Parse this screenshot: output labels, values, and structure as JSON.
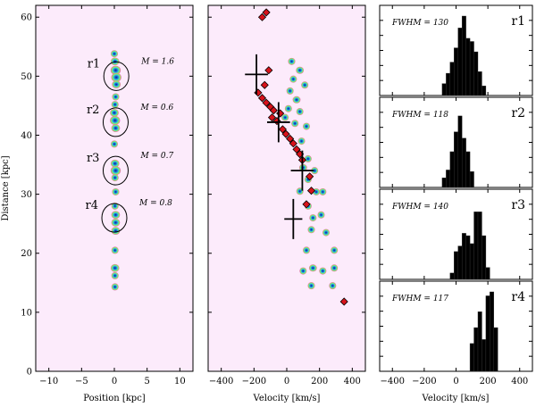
{
  "chart_data": [
    {
      "type": "scatter",
      "xlabel": "Position [kpc]",
      "ylabel": "Distance [kpc]",
      "xlim": [
        -12,
        12
      ],
      "ylim": [
        0,
        62
      ],
      "xticks": [
        -10,
        -5,
        0,
        5,
        10
      ],
      "yticks": [
        0,
        10,
        20,
        30,
        40,
        50,
        60
      ],
      "background": "#fcebfb",
      "blobs": [
        {
          "x": 0.0,
          "y": 53.8,
          "r": 0.5
        },
        {
          "x": 0.1,
          "y": 52.5,
          "r": 0.6
        },
        {
          "x": 0.2,
          "y": 51.0,
          "r": 0.7
        },
        {
          "x": 0.3,
          "y": 49.8,
          "r": 0.7
        },
        {
          "x": 0.3,
          "y": 48.6,
          "r": 0.6
        },
        {
          "x": 0.2,
          "y": 46.5,
          "r": 0.5
        },
        {
          "x": 0.1,
          "y": 45.2,
          "r": 0.5
        },
        {
          "x": 0.0,
          "y": 43.8,
          "r": 0.6
        },
        {
          "x": 0.1,
          "y": 42.5,
          "r": 0.7
        },
        {
          "x": 0.2,
          "y": 41.2,
          "r": 0.6
        },
        {
          "x": 0.0,
          "y": 38.5,
          "r": 0.4
        },
        {
          "x": 0.1,
          "y": 35.2,
          "r": 0.6
        },
        {
          "x": 0.2,
          "y": 34.0,
          "r": 0.7
        },
        {
          "x": 0.1,
          "y": 32.8,
          "r": 0.5
        },
        {
          "x": 0.2,
          "y": 30.4,
          "r": 0.5
        },
        {
          "x": 0.1,
          "y": 28.0,
          "r": 0.4
        },
        {
          "x": 0.2,
          "y": 26.5,
          "r": 0.6
        },
        {
          "x": 0.2,
          "y": 25.2,
          "r": 0.6
        },
        {
          "x": 0.2,
          "y": 23.8,
          "r": 0.6
        },
        {
          "x": 0.1,
          "y": 20.5,
          "r": 0.4
        },
        {
          "x": 0.1,
          "y": 17.5,
          "r": 0.6
        },
        {
          "x": 0.1,
          "y": 16.2,
          "r": 0.5
        },
        {
          "x": 0.1,
          "y": 14.3,
          "r": 0.4
        }
      ],
      "regions": [
        {
          "label": "r1",
          "x": 0.3,
          "y": 50.0,
          "mass": "M = 1.6"
        },
        {
          "label": "r2",
          "x": 0.2,
          "y": 42.2,
          "mass": "M = 0.6"
        },
        {
          "label": "r3",
          "x": 0.2,
          "y": 34.0,
          "mass": "M = 0.7"
        },
        {
          "label": "r4",
          "x": 0.0,
          "y": 26.0,
          "mass": "M = 0.8"
        }
      ]
    },
    {
      "type": "scatter",
      "xlabel": "Velocity [km/s]",
      "xlim": [
        -480,
        480
      ],
      "ylim": [
        0,
        62
      ],
      "xticks": [
        -400,
        -200,
        0,
        200,
        400
      ],
      "blobs": [
        {
          "x": 30,
          "y": 52.5,
          "r": 22
        },
        {
          "x": 80,
          "y": 51.0,
          "r": 24
        },
        {
          "x": 40,
          "y": 49.5,
          "r": 22
        },
        {
          "x": 110,
          "y": 48.5,
          "r": 18
        },
        {
          "x": 20,
          "y": 47.5,
          "r": 20
        },
        {
          "x": 60,
          "y": 46.0,
          "r": 24
        },
        {
          "x": 10,
          "y": 44.5,
          "r": 20
        },
        {
          "x": 80,
          "y": 44.0,
          "r": 18
        },
        {
          "x": -10,
          "y": 43.0,
          "r": 18
        },
        {
          "x": 50,
          "y": 42.0,
          "r": 20
        },
        {
          "x": 120,
          "y": 41.5,
          "r": 16
        },
        {
          "x": 90,
          "y": 39.0,
          "r": 16
        },
        {
          "x": 130,
          "y": 36.0,
          "r": 18
        },
        {
          "x": 100,
          "y": 34.5,
          "r": 24
        },
        {
          "x": 170,
          "y": 34.0,
          "r": 18
        },
        {
          "x": 130,
          "y": 32.5,
          "r": 16
        },
        {
          "x": 80,
          "y": 30.5,
          "r": 14
        },
        {
          "x": 180,
          "y": 30.4,
          "r": 12
        },
        {
          "x": 220,
          "y": 30.4,
          "r": 12
        },
        {
          "x": 130,
          "y": 28.0,
          "r": 12
        },
        {
          "x": 160,
          "y": 26.0,
          "r": 22
        },
        {
          "x": 210,
          "y": 26.5,
          "r": 16
        },
        {
          "x": 150,
          "y": 24.0,
          "r": 18
        },
        {
          "x": 240,
          "y": 23.5,
          "r": 14
        },
        {
          "x": 120,
          "y": 20.5,
          "r": 10
        },
        {
          "x": 290,
          "y": 20.5,
          "r": 10
        },
        {
          "x": 160,
          "y": 17.5,
          "r": 24
        },
        {
          "x": 220,
          "y": 17.0,
          "r": 22
        },
        {
          "x": 100,
          "y": 17.0,
          "r": 10
        },
        {
          "x": 290,
          "y": 17.5,
          "r": 10
        },
        {
          "x": 150,
          "y": 14.5,
          "r": 12
        },
        {
          "x": 280,
          "y": 14.5,
          "r": 12
        }
      ],
      "diamonds": [
        {
          "x": -150,
          "y": 60.0
        },
        {
          "x": -125,
          "y": 60.8
        },
        {
          "x": -110,
          "y": 51.0
        },
        {
          "x": -135,
          "y": 48.5
        },
        {
          "x": -175,
          "y": 47.2
        },
        {
          "x": -150,
          "y": 46.3
        },
        {
          "x": -125,
          "y": 45.5
        },
        {
          "x": -100,
          "y": 44.8
        },
        {
          "x": -80,
          "y": 44.2
        },
        {
          "x": -40,
          "y": 43.7
        },
        {
          "x": -90,
          "y": 43.0
        },
        {
          "x": -60,
          "y": 42.4
        },
        {
          "x": -25,
          "y": 41.0
        },
        {
          "x": -5,
          "y": 40.2
        },
        {
          "x": 20,
          "y": 39.4
        },
        {
          "x": 40,
          "y": 38.6
        },
        {
          "x": 60,
          "y": 37.6
        },
        {
          "x": 80,
          "y": 36.8
        },
        {
          "x": 95,
          "y": 35.8
        },
        {
          "x": 140,
          "y": 33.0
        },
        {
          "x": 150,
          "y": 30.6
        },
        {
          "x": 120,
          "y": 28.3
        },
        {
          "x": 350,
          "y": 11.8
        }
      ],
      "crosses": [
        {
          "x": -185,
          "y": 50.3,
          "dx": 70,
          "dy": 3.4
        },
        {
          "x": -50,
          "y": 42.2,
          "dx": 70,
          "dy": 3.4
        },
        {
          "x": 95,
          "y": 34.0,
          "dx": 70,
          "dy": 3.4
        },
        {
          "x": 40,
          "y": 25.8,
          "dx": 55,
          "dy": 3.4
        }
      ]
    },
    {
      "type": "bar",
      "xlabel": "Velocity [km/s]",
      "xlim": [
        -480,
        480
      ],
      "xticks": [
        -400,
        -200,
        0,
        200,
        400
      ],
      "panels": [
        {
          "label": "r1",
          "fwhm_text": "FWHM = 130",
          "bin_width": 25,
          "ymax": 1.0,
          "bins": [
            {
              "x": -75,
              "h": 0.15
            },
            {
              "x": -50,
              "h": 0.28
            },
            {
              "x": -25,
              "h": 0.42
            },
            {
              "x": 0,
              "h": 0.6
            },
            {
              "x": 25,
              "h": 0.85
            },
            {
              "x": 50,
              "h": 1.0
            },
            {
              "x": 75,
              "h": 0.72
            },
            {
              "x": 100,
              "h": 0.68
            },
            {
              "x": 125,
              "h": 0.55
            },
            {
              "x": 150,
              "h": 0.3
            },
            {
              "x": 175,
              "h": 0.12
            }
          ]
        },
        {
          "label": "r2",
          "fwhm_text": "FWHM = 118",
          "bin_width": 25,
          "ymax": 1.0,
          "bins": [
            {
              "x": -75,
              "h": 0.12
            },
            {
              "x": -50,
              "h": 0.22
            },
            {
              "x": -25,
              "h": 0.45
            },
            {
              "x": 0,
              "h": 0.7
            },
            {
              "x": 25,
              "h": 0.9
            },
            {
              "x": 50,
              "h": 0.62
            },
            {
              "x": 75,
              "h": 0.45
            },
            {
              "x": 100,
              "h": 0.2
            }
          ]
        },
        {
          "label": "r3",
          "fwhm_text": "FWHM = 140",
          "bin_width": 25,
          "ymax": 1.0,
          "bins": [
            {
              "x": -25,
              "h": 0.08
            },
            {
              "x": 0,
              "h": 0.35
            },
            {
              "x": 25,
              "h": 0.42
            },
            {
              "x": 50,
              "h": 0.58
            },
            {
              "x": 75,
              "h": 0.55
            },
            {
              "x": 100,
              "h": 0.45
            },
            {
              "x": 125,
              "h": 0.85
            },
            {
              "x": 150,
              "h": 0.85
            },
            {
              "x": 175,
              "h": 0.55
            },
            {
              "x": 200,
              "h": 0.15
            }
          ]
        },
        {
          "label": "r4",
          "fwhm_text": "FWHM = 117",
          "bin_width": 25,
          "ymax": 1.0,
          "bins": [
            {
              "x": 100,
              "h": 0.35
            },
            {
              "x": 125,
              "h": 0.55
            },
            {
              "x": 150,
              "h": 0.75
            },
            {
              "x": 175,
              "h": 0.4
            },
            {
              "x": 200,
              "h": 0.95
            },
            {
              "x": 225,
              "h": 1.0
            },
            {
              "x": 250,
              "h": 0.55
            }
          ]
        }
      ]
    }
  ]
}
